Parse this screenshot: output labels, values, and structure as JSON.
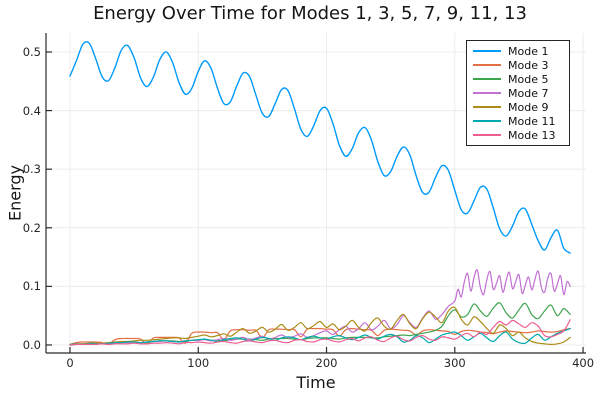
{
  "chart_data": {
    "type": "line",
    "title": "Energy Over Time for Modes 1, 3, 5, 7, 9, 11, 13",
    "xlabel": "Time",
    "ylabel": "Energy",
    "grid": true,
    "background": "#FFFFFF",
    "grid_color": "#ECECEC",
    "axis_color": "#2B2B2B",
    "legend_position": "top-right",
    "xlim": [
      -18.7,
      402.3
    ],
    "ylim": [
      -0.0137,
      0.5324
    ],
    "xticks": [
      {
        "v": 0,
        "label": "0"
      },
      {
        "v": 100,
        "label": "100"
      },
      {
        "v": 200,
        "label": "200"
      },
      {
        "v": 300,
        "label": "300"
      },
      {
        "v": 400,
        "label": "400"
      }
    ],
    "yticks": [
      {
        "v": 0.0,
        "label": "0.0"
      },
      {
        "v": 0.1,
        "label": "0.1"
      },
      {
        "v": 0.2,
        "label": "0.2"
      },
      {
        "v": 0.3,
        "label": "0.3"
      },
      {
        "v": 0.4,
        "label": "0.4"
      },
      {
        "v": 0.5,
        "label": "0.5"
      }
    ],
    "x": [
      0,
      5,
      10,
      15,
      20,
      25,
      30,
      35,
      40,
      45,
      50,
      55,
      60,
      65,
      70,
      75,
      80,
      85,
      90,
      95,
      100,
      105,
      110,
      115,
      120,
      125,
      130,
      135,
      140,
      145,
      150,
      155,
      160,
      165,
      170,
      175,
      180,
      185,
      190,
      195,
      200,
      205,
      210,
      215,
      220,
      225,
      230,
      235,
      240,
      245,
      250,
      255,
      260,
      265,
      270,
      275,
      280,
      285,
      290,
      295,
      300,
      305,
      310,
      315,
      320,
      325,
      330,
      335,
      340,
      345,
      350,
      355,
      360,
      365,
      370,
      375,
      380,
      385,
      390
    ],
    "series": [
      {
        "name": "Mode 1",
        "color": "#009AFA",
        "values": [
          0.459,
          0.485,
          0.513,
          0.515,
          0.489,
          0.458,
          0.451,
          0.473,
          0.503,
          0.511,
          0.49,
          0.456,
          0.441,
          0.457,
          0.487,
          0.5,
          0.482,
          0.448,
          0.428,
          0.438,
          0.467,
          0.485,
          0.472,
          0.438,
          0.412,
          0.415,
          0.442,
          0.464,
          0.458,
          0.426,
          0.395,
          0.39,
          0.412,
          0.436,
          0.434,
          0.403,
          0.368,
          0.356,
          0.374,
          0.4,
          0.404,
          0.378,
          0.341,
          0.322,
          0.335,
          0.362,
          0.371,
          0.35,
          0.313,
          0.289,
          0.296,
          0.322,
          0.338,
          0.324,
          0.288,
          0.26,
          0.261,
          0.286,
          0.306,
          0.298,
          0.264,
          0.231,
          0.225,
          0.246,
          0.269,
          0.266,
          0.234,
          0.198,
          0.186,
          0.203,
          0.228,
          0.232,
          0.206,
          0.178,
          0.162,
          0.183,
          0.196,
          0.165,
          0.157
        ]
      },
      {
        "name": "Mode 3",
        "color": "#E36F47",
        "values": [
          0.001,
          0.004,
          0.005,
          0.005,
          0.005,
          0.004,
          0.001,
          0.009,
          0.011,
          0.011,
          0.011,
          0.01,
          0.002,
          0.012,
          0.013,
          0.013,
          0.013,
          0.012,
          0.003,
          0.02,
          0.022,
          0.022,
          0.021,
          0.021,
          0.009,
          0.024,
          0.026,
          0.026,
          0.025,
          0.025,
          0.012,
          0.026,
          0.027,
          0.027,
          0.026,
          0.026,
          0.014,
          0.027,
          0.028,
          0.028,
          0.027,
          0.026,
          0.015,
          0.026,
          0.028,
          0.027,
          0.026,
          0.025,
          0.016,
          0.025,
          0.027,
          0.026,
          0.025,
          0.024,
          0.017,
          0.024,
          0.026,
          0.025,
          0.024,
          0.023,
          0.018,
          0.023,
          0.025,
          0.024,
          0.022,
          0.021,
          0.019,
          0.022,
          0.024,
          0.023,
          0.022,
          0.021,
          0.022,
          0.024,
          0.023,
          0.022,
          0.023,
          0.026,
          0.028
        ]
      },
      {
        "name": "Mode 5",
        "color": "#3DA44E",
        "values": [
          0.001,
          0.002,
          0.002,
          0.003,
          0.003,
          0.002,
          0.003,
          0.004,
          0.005,
          0.005,
          0.005,
          0.004,
          0.004,
          0.006,
          0.007,
          0.007,
          0.007,
          0.006,
          0.006,
          0.008,
          0.009,
          0.009,
          0.008,
          0.008,
          0.007,
          0.009,
          0.01,
          0.01,
          0.01,
          0.009,
          0.008,
          0.01,
          0.011,
          0.011,
          0.011,
          0.01,
          0.009,
          0.011,
          0.012,
          0.012,
          0.012,
          0.011,
          0.01,
          0.012,
          0.013,
          0.013,
          0.013,
          0.012,
          0.012,
          0.014,
          0.015,
          0.016,
          0.017,
          0.016,
          0.018,
          0.02,
          0.022,
          0.025,
          0.032,
          0.05,
          0.06,
          0.048,
          0.052,
          0.07,
          0.058,
          0.049,
          0.063,
          0.072,
          0.055,
          0.046,
          0.06,
          0.071,
          0.052,
          0.045,
          0.058,
          0.068,
          0.05,
          0.062,
          0.052
        ]
      },
      {
        "name": "Mode 7",
        "color": "#C270D2",
        "x": [
          0,
          5,
          10,
          15,
          20,
          25,
          30,
          35,
          40,
          45,
          50,
          55,
          60,
          65,
          70,
          75,
          80,
          85,
          90,
          95,
          100,
          105,
          110,
          115,
          120,
          125,
          130,
          135,
          140,
          145,
          150,
          155,
          160,
          165,
          170,
          175,
          180,
          185,
          190,
          195,
          200,
          205,
          210,
          215,
          220,
          225,
          230,
          235,
          240,
          245,
          250,
          255,
          260,
          265,
          270,
          275,
          280,
          285,
          290,
          295,
          300,
          302.5,
          305,
          307.5,
          310,
          312.5,
          315,
          317.5,
          320,
          322.5,
          325,
          327.5,
          330,
          332.5,
          335,
          337.5,
          340,
          342.5,
          345,
          347.5,
          350,
          352.5,
          355,
          357.5,
          360,
          362.5,
          365,
          367.5,
          370,
          372.5,
          375,
          377.5,
          380,
          382.5,
          385,
          387.5,
          390
        ],
        "values": [
          0.0,
          0.001,
          0.001,
          0.002,
          0.002,
          0.003,
          0.002,
          0.003,
          0.004,
          0.004,
          0.005,
          0.004,
          0.005,
          0.006,
          0.006,
          0.007,
          0.006,
          0.005,
          0.007,
          0.008,
          0.008,
          0.009,
          0.007,
          0.009,
          0.011,
          0.008,
          0.01,
          0.013,
          0.009,
          0.012,
          0.015,
          0.01,
          0.013,
          0.017,
          0.012,
          0.015,
          0.019,
          0.013,
          0.016,
          0.021,
          0.024,
          0.018,
          0.026,
          0.032,
          0.022,
          0.028,
          0.038,
          0.026,
          0.032,
          0.042,
          0.028,
          0.035,
          0.05,
          0.038,
          0.03,
          0.046,
          0.058,
          0.044,
          0.052,
          0.066,
          0.075,
          0.095,
          0.082,
          0.108,
          0.122,
          0.092,
          0.115,
          0.128,
          0.098,
          0.086,
          0.112,
          0.125,
          0.095,
          0.105,
          0.118,
          0.09,
          0.11,
          0.124,
          0.096,
          0.108,
          0.12,
          0.088,
          0.102,
          0.116,
          0.094,
          0.112,
          0.126,
          0.098,
          0.09,
          0.114,
          0.122,
          0.092,
          0.104,
          0.118,
          0.086,
          0.108,
          0.1
        ]
      },
      {
        "name": "Mode 9",
        "color": "#AC8D18",
        "values": [
          0.0,
          0.001,
          0.002,
          0.002,
          0.003,
          0.003,
          0.004,
          0.005,
          0.006,
          0.006,
          0.007,
          0.008,
          0.008,
          0.009,
          0.01,
          0.011,
          0.012,
          0.012,
          0.011,
          0.013,
          0.015,
          0.017,
          0.014,
          0.016,
          0.019,
          0.015,
          0.022,
          0.028,
          0.02,
          0.024,
          0.03,
          0.022,
          0.027,
          0.035,
          0.025,
          0.03,
          0.038,
          0.028,
          0.033,
          0.04,
          0.03,
          0.036,
          0.026,
          0.032,
          0.042,
          0.03,
          0.024,
          0.038,
          0.046,
          0.032,
          0.027,
          0.042,
          0.052,
          0.036,
          0.028,
          0.045,
          0.056,
          0.048,
          0.038,
          0.058,
          0.064,
          0.044,
          0.034,
          0.048,
          0.04,
          0.028,
          0.02,
          0.034,
          0.028,
          0.016,
          0.022,
          0.012,
          0.006,
          0.003,
          0.002,
          0.001,
          0.002,
          0.005,
          0.013
        ]
      },
      {
        "name": "Mode 11",
        "color": "#00A9AD",
        "values": [
          0.0,
          0.001,
          0.001,
          0.002,
          0.002,
          0.002,
          0.003,
          0.004,
          0.004,
          0.005,
          0.005,
          0.004,
          0.005,
          0.006,
          0.007,
          0.007,
          0.006,
          0.005,
          0.007,
          0.008,
          0.009,
          0.01,
          0.008,
          0.006,
          0.009,
          0.011,
          0.012,
          0.01,
          0.007,
          0.01,
          0.013,
          0.011,
          0.008,
          0.012,
          0.014,
          0.012,
          0.009,
          0.013,
          0.015,
          0.012,
          0.01,
          0.014,
          0.016,
          0.012,
          0.009,
          0.013,
          0.017,
          0.013,
          0.01,
          0.015,
          0.018,
          0.014,
          0.005,
          0.008,
          0.016,
          0.012,
          0.004,
          0.01,
          0.017,
          0.02,
          0.022,
          0.016,
          0.008,
          0.014,
          0.02,
          0.012,
          0.006,
          0.016,
          0.022,
          0.01,
          0.004,
          0.003,
          0.012,
          0.018,
          0.008,
          0.014,
          0.02,
          0.024,
          0.028
        ]
      },
      {
        "name": "Mode 13",
        "color": "#ED5F92",
        "values": [
          0.0,
          0.001,
          0.001,
          0.001,
          0.001,
          0.002,
          0.001,
          0.002,
          0.002,
          0.002,
          0.003,
          0.002,
          0.002,
          0.003,
          0.003,
          0.004,
          0.003,
          0.002,
          0.004,
          0.004,
          0.005,
          0.004,
          0.003,
          0.005,
          0.006,
          0.004,
          0.003,
          0.006,
          0.007,
          0.005,
          0.004,
          0.007,
          0.008,
          0.005,
          0.004,
          0.008,
          0.009,
          0.006,
          0.005,
          0.009,
          0.01,
          0.007,
          0.005,
          0.009,
          0.011,
          0.007,
          0.012,
          0.014,
          0.008,
          0.006,
          0.012,
          0.015,
          0.009,
          0.007,
          0.013,
          0.016,
          0.01,
          0.008,
          0.014,
          0.012,
          0.01,
          0.016,
          0.02,
          0.014,
          0.022,
          0.018,
          0.03,
          0.04,
          0.034,
          0.042,
          0.036,
          0.03,
          0.038,
          0.032,
          0.016,
          0.014,
          0.018,
          0.024,
          0.043
        ]
      }
    ]
  }
}
